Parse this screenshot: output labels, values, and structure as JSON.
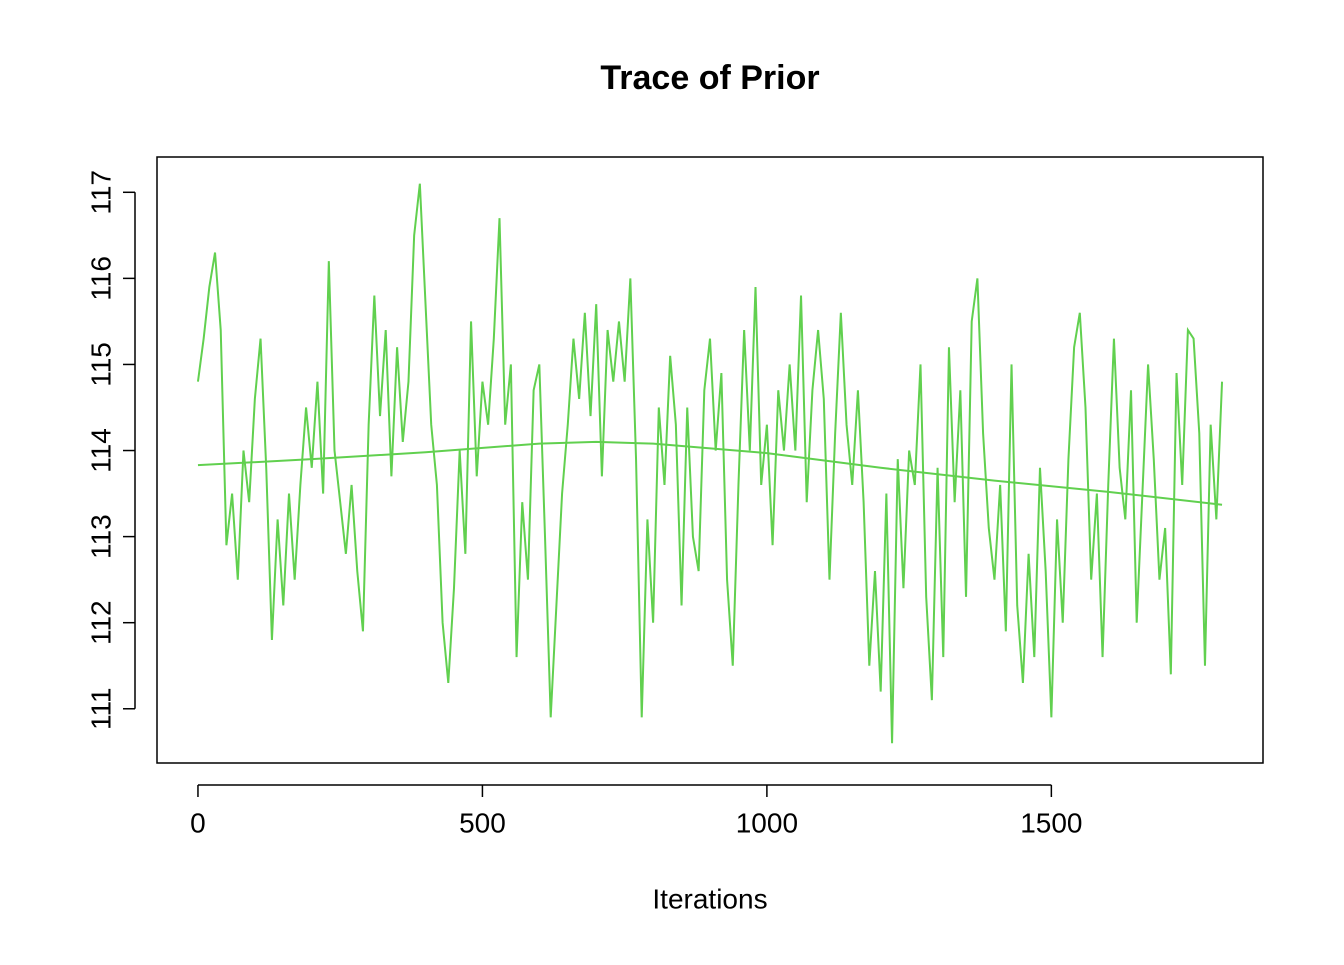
{
  "chart_data": {
    "type": "line",
    "title": "Trace of Prior",
    "xlabel": "Iterations",
    "xlim": [
      -72,
      1872
    ],
    "ylim": [
      110.37,
      117.41
    ],
    "xticks": [
      0,
      500,
      1000,
      1500
    ],
    "yticks": [
      111,
      112,
      113,
      114,
      115,
      116,
      117
    ],
    "series": [
      {
        "color": "#61d04f",
        "x": [
          0,
          10,
          20,
          30,
          40,
          50,
          60,
          70,
          80,
          90,
          100,
          110,
          120,
          130,
          140,
          150,
          160,
          170,
          180,
          190,
          200,
          210,
          220,
          230,
          240,
          250,
          260,
          270,
          280,
          290,
          300,
          310,
          320,
          330,
          340,
          350,
          360,
          370,
          380,
          390,
          400,
          410,
          420,
          430,
          440,
          450,
          460,
          470,
          480,
          490,
          500,
          510,
          520,
          530,
          540,
          550,
          560,
          570,
          580,
          590,
          600,
          610,
          620,
          630,
          640,
          650,
          660,
          670,
          680,
          690,
          700,
          710,
          720,
          730,
          740,
          750,
          760,
          770,
          780,
          790,
          800,
          810,
          820,
          830,
          840,
          850,
          860,
          870,
          880,
          890,
          900,
          910,
          920,
          930,
          940,
          950,
          960,
          970,
          980,
          990,
          1000,
          1010,
          1020,
          1030,
          1040,
          1050,
          1060,
          1070,
          1080,
          1090,
          1100,
          1110,
          1120,
          1130,
          1140,
          1150,
          1160,
          1170,
          1180,
          1190,
          1200,
          1210,
          1220,
          1230,
          1240,
          1250,
          1260,
          1270,
          1280,
          1290,
          1300,
          1310,
          1320,
          1330,
          1340,
          1350,
          1360,
          1370,
          1380,
          1390,
          1400,
          1410,
          1420,
          1430,
          1440,
          1450,
          1460,
          1470,
          1480,
          1490,
          1500,
          1510,
          1520,
          1530,
          1540,
          1550,
          1560,
          1570,
          1580,
          1590,
          1600,
          1610,
          1620,
          1630,
          1640,
          1650,
          1660,
          1670,
          1680,
          1690,
          1700,
          1710,
          1720,
          1730,
          1740,
          1750,
          1760,
          1770,
          1780,
          1790,
          1800
        ],
        "values": [
          114.8,
          115.3,
          115.9,
          116.3,
          115.4,
          112.9,
          113.5,
          112.5,
          114.0,
          113.4,
          114.6,
          115.3,
          113.8,
          111.8,
          113.2,
          112.2,
          113.5,
          112.5,
          113.6,
          114.5,
          113.8,
          114.8,
          113.5,
          116.2,
          114.0,
          113.4,
          112.8,
          113.6,
          112.6,
          111.9,
          114.3,
          115.8,
          114.4,
          115.4,
          113.7,
          115.2,
          114.1,
          114.8,
          116.5,
          117.1,
          115.7,
          114.3,
          113.6,
          112.0,
          111.3,
          112.4,
          114.0,
          112.8,
          115.5,
          113.7,
          114.8,
          114.3,
          115.3,
          116.7,
          114.3,
          115.0,
          111.6,
          113.4,
          112.5,
          114.7,
          115.0,
          113.0,
          110.9,
          112.2,
          113.5,
          114.3,
          115.3,
          114.6,
          115.6,
          114.4,
          115.7,
          113.7,
          115.4,
          114.8,
          115.5,
          114.8,
          116.0,
          113.9,
          110.9,
          113.2,
          112.0,
          114.5,
          113.6,
          115.1,
          114.3,
          112.2,
          114.5,
          113.0,
          112.6,
          114.7,
          115.3,
          114.0,
          114.9,
          112.5,
          111.5,
          113.6,
          115.4,
          114.0,
          115.9,
          113.6,
          114.3,
          112.9,
          114.7,
          114.0,
          115.0,
          114.0,
          115.8,
          113.4,
          114.7,
          115.4,
          114.6,
          112.5,
          114.2,
          115.6,
          114.3,
          113.6,
          114.7,
          113.4,
          111.5,
          112.6,
          111.2,
          113.5,
          110.6,
          113.9,
          112.4,
          114.0,
          113.6,
          115.0,
          112.3,
          111.1,
          113.8,
          111.6,
          115.2,
          113.4,
          114.7,
          112.3,
          115.5,
          116.0,
          114.2,
          113.1,
          112.5,
          113.6,
          111.9,
          115.0,
          112.2,
          111.3,
          112.8,
          111.6,
          113.8,
          112.6,
          110.9,
          113.2,
          112.0,
          113.9,
          115.2,
          115.6,
          114.5,
          112.5,
          113.5,
          111.6,
          113.6,
          115.3,
          113.8,
          113.2,
          114.7,
          112.0,
          113.5,
          115.0,
          113.9,
          112.5,
          113.1,
          111.4,
          114.9,
          113.6,
          115.4,
          115.3,
          114.2,
          111.5,
          114.3,
          113.2,
          114.8
        ]
      },
      {
        "color": "#61d04f",
        "x": [
          0,
          200,
          400,
          600,
          700,
          800,
          1000,
          1200,
          1400,
          1600,
          1800
        ],
        "values": [
          113.83,
          113.9,
          113.98,
          114.08,
          114.1,
          114.08,
          113.97,
          113.8,
          113.65,
          113.52,
          113.37
        ]
      }
    ]
  }
}
